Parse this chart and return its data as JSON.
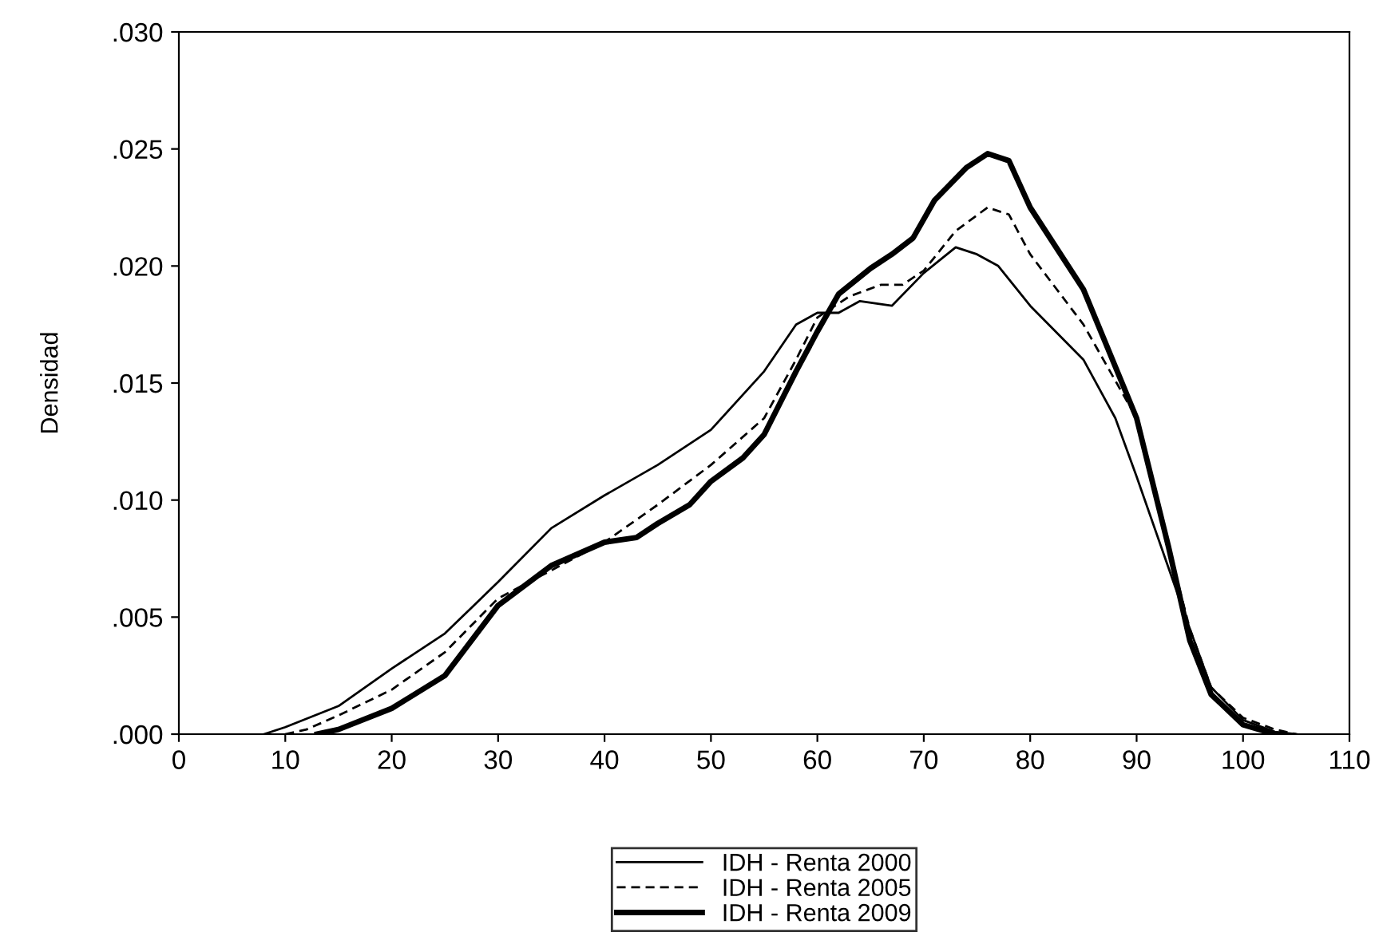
{
  "chart_data": {
    "type": "line",
    "ylabel": "Densidad",
    "xlim": [
      0,
      110
    ],
    "xticks": [
      0,
      10,
      20,
      30,
      40,
      50,
      60,
      70,
      80,
      90,
      100,
      110
    ],
    "ylim": [
      0,
      0.03
    ],
    "yticks": [
      {
        "value": 0,
        "label": ".000"
      },
      {
        "value": 0.005,
        "label": ".005"
      },
      {
        "value": 0.01,
        "label": ".010"
      },
      {
        "value": 0.015,
        "label": ".015"
      },
      {
        "value": 0.02,
        "label": ".020"
      },
      {
        "value": 0.025,
        "label": ".025"
      },
      {
        "value": 0.03,
        "label": ".030"
      }
    ],
    "grid": false,
    "legend": "bottom",
    "marker": "none",
    "series": [
      {
        "name": "IDH - Renta 2000",
        "color": "#000000",
        "line_style": "solid",
        "x": [
          8,
          10,
          15,
          20,
          25,
          30,
          35,
          40,
          45,
          50,
          55,
          58,
          60,
          62,
          64,
          67,
          70,
          73,
          75,
          77,
          80,
          85,
          88,
          90,
          95,
          97,
          100,
          103,
          105
        ],
        "values": [
          0,
          0.0003,
          0.0012,
          0.0028,
          0.0043,
          0.0065,
          0.0088,
          0.0102,
          0.0115,
          0.013,
          0.0155,
          0.0175,
          0.018,
          0.018,
          0.0185,
          0.0183,
          0.0197,
          0.0208,
          0.0205,
          0.02,
          0.0183,
          0.016,
          0.0135,
          0.011,
          0.0045,
          0.002,
          0.0006,
          0.0001,
          0
        ]
      },
      {
        "name": "IDH - Renta 2005",
        "color": "#000000",
        "line_style": "dashed",
        "x": [
          10,
          12,
          15,
          20,
          25,
          30,
          35,
          40,
          45,
          50,
          55,
          58,
          60,
          63,
          66,
          68,
          70,
          73,
          76,
          78,
          80,
          85,
          90,
          93,
          95,
          97,
          100,
          103,
          105
        ],
        "values": [
          0,
          0.0002,
          0.0008,
          0.0019,
          0.0035,
          0.0058,
          0.007,
          0.0082,
          0.0098,
          0.0115,
          0.0135,
          0.016,
          0.0178,
          0.0187,
          0.0192,
          0.0192,
          0.0198,
          0.0215,
          0.0225,
          0.0222,
          0.0205,
          0.0175,
          0.0135,
          0.008,
          0.0045,
          0.002,
          0.0007,
          0.0002,
          0
        ]
      },
      {
        "name": "IDH - Renta 2009",
        "color": "#000000",
        "line_style": "solid",
        "x": [
          13,
          15,
          20,
          25,
          30,
          35,
          40,
          43,
          45,
          48,
          50,
          53,
          55,
          58,
          60,
          62,
          65,
          67,
          69,
          71,
          74,
          76,
          78,
          80,
          85,
          90,
          93,
          95,
          97,
          100,
          103
        ],
        "values": [
          0,
          0.0002,
          0.0011,
          0.0025,
          0.0055,
          0.0072,
          0.0082,
          0.0084,
          0.009,
          0.0098,
          0.0108,
          0.0118,
          0.0128,
          0.0155,
          0.0172,
          0.0188,
          0.0199,
          0.0205,
          0.0212,
          0.0228,
          0.0242,
          0.0248,
          0.0245,
          0.0225,
          0.019,
          0.0135,
          0.008,
          0.004,
          0.0017,
          0.0004,
          0
        ]
      }
    ]
  }
}
